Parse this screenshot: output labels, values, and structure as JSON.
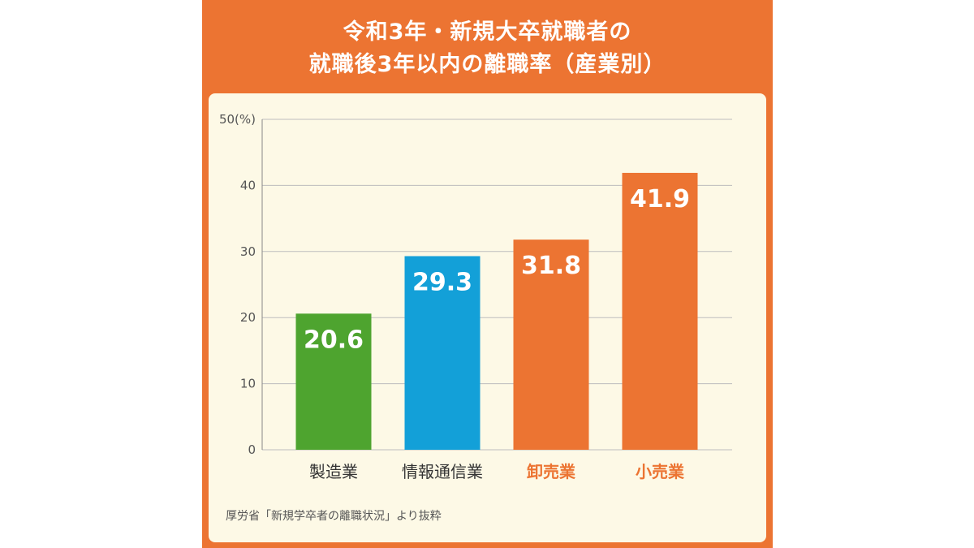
{
  "title_lines": [
    "令和3年・新規大卒就職者の",
    "就職後3年以内の離職率（産業別）"
  ],
  "colors": {
    "frame": "#ec7432",
    "panel": "#fdf9e6",
    "manufacturing": "#4ea42f",
    "info_comm": "#13a0d8",
    "highlight": "#ec7432",
    "label_default": "#333333"
  },
  "source": "厚労省「新規学卒者の離職状況」より抜粋",
  "chart_data": {
    "type": "bar",
    "categories": [
      "製造業",
      "情報通信業",
      "卸売業",
      "小売業"
    ],
    "values": [
      20.6,
      29.3,
      31.8,
      41.9
    ],
    "value_labels": [
      "20.6",
      "29.3",
      "31.8",
      "41.9"
    ],
    "bar_colors": [
      "#4ea42f",
      "#13a0d8",
      "#ec7432",
      "#ec7432"
    ],
    "category_label_colors": [
      "#333333",
      "#333333",
      "#ec7432",
      "#ec7432"
    ],
    "category_label_bold": [
      false,
      false,
      true,
      true
    ],
    "ylim": [
      0,
      50
    ],
    "yticks": [
      0,
      10,
      20,
      30,
      40,
      50
    ],
    "ytick_labels": [
      "0",
      "10",
      "20",
      "30",
      "40",
      "50(%)"
    ],
    "grid": true,
    "xlabel": "",
    "ylabel": ""
  }
}
